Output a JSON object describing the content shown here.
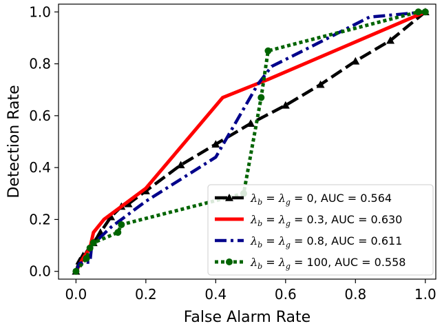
{
  "chart_data": {
    "type": "line",
    "title": "",
    "xlabel": "False Alarm Rate",
    "ylabel": "Detection Rate",
    "xlim": [
      -0.05,
      1.03
    ],
    "ylim": [
      -0.03,
      1.03
    ],
    "xticks": [
      "0.0",
      "0.2",
      "0.4",
      "0.6",
      "0.8",
      "1.0"
    ],
    "yticks": [
      "0.0",
      "0.2",
      "0.4",
      "0.6",
      "0.8",
      "1.0"
    ],
    "grid": false,
    "legend_position": "lower-right",
    "series": [
      {
        "name": "λb = λg = 0, AUC = 0.564",
        "legend": {
          "sym1": "λ",
          "sub1": "b",
          "mid": " = ",
          "sym2": "λ",
          "sub2": "g",
          "rest": " = 0, AUC = 0.564"
        },
        "color": "#000000",
        "style": "dashed",
        "marker": "triangle",
        "x": [
          0.0,
          0.01,
          0.02,
          0.03,
          0.05,
          0.07,
          0.1,
          0.13,
          0.15,
          0.2,
          0.3,
          0.4,
          0.5,
          0.6,
          0.7,
          0.8,
          0.9,
          1.0
        ],
        "y": [
          0.0,
          0.04,
          0.06,
          0.07,
          0.11,
          0.15,
          0.21,
          0.25,
          0.26,
          0.31,
          0.41,
          0.49,
          0.57,
          0.64,
          0.72,
          0.81,
          0.89,
          1.0
        ]
      },
      {
        "name": "λb = λg = 0.3, AUC = 0.630",
        "legend": {
          "sym1": "λ",
          "sub1": "b",
          "mid": " = ",
          "sym2": "λ",
          "sub2": "g",
          "rest": " = 0.3, AUC = 0.630"
        },
        "color": "#ff0000",
        "style": "solid",
        "marker": "none",
        "x": [
          0.0,
          0.02,
          0.04,
          0.05,
          0.08,
          0.2,
          0.42,
          0.55,
          1.0
        ],
        "y": [
          0.0,
          0.05,
          0.09,
          0.15,
          0.2,
          0.32,
          0.67,
          0.74,
          1.0
        ]
      },
      {
        "name": "λb = λg = 0.8, AUC = 0.611",
        "legend": {
          "sym1": "λ",
          "sub1": "b",
          "mid": " = ",
          "sym2": "λ",
          "sub2": "g",
          "rest": " = 0.8, AUC = 0.611"
        },
        "color": "#00008b",
        "style": "dashdot",
        "marker": "none",
        "x": [
          0.0,
          0.01,
          0.02,
          0.04,
          0.045,
          0.1,
          0.2,
          0.4,
          0.52,
          0.56,
          0.62,
          0.84,
          1.0
        ],
        "y": [
          0.0,
          0.03,
          0.035,
          0.035,
          0.1,
          0.17,
          0.27,
          0.44,
          0.72,
          0.79,
          0.83,
          0.98,
          1.0
        ]
      },
      {
        "name": "λb = λg = 100, AUC = 0.558",
        "legend": {
          "sym1": "λ",
          "sub1": "b",
          "mid": " = ",
          "sym2": "λ",
          "sub2": "g",
          "rest": " = 100, AUC = 0.558"
        },
        "color": "#006400",
        "style": "dotted",
        "marker": "circle",
        "x": [
          0.0,
          0.03,
          0.04,
          0.05,
          0.12,
          0.13,
          0.48,
          0.53,
          0.55,
          0.98,
          1.0
        ],
        "y": [
          0.0,
          0.05,
          0.09,
          0.11,
          0.15,
          0.18,
          0.3,
          0.67,
          0.85,
          1.0,
          1.0
        ]
      }
    ]
  }
}
